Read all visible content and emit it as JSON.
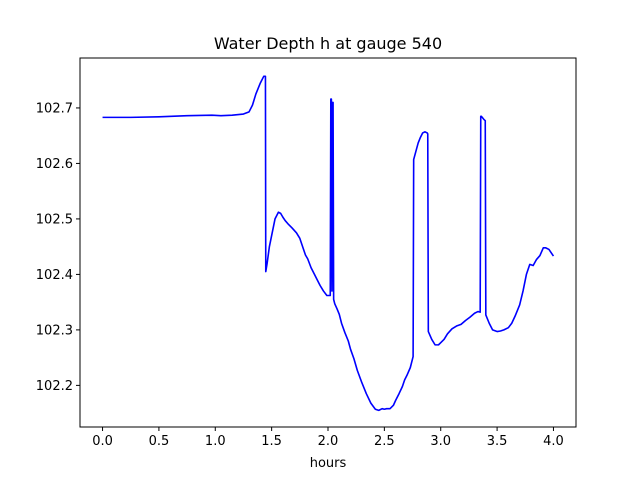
{
  "chart_data": {
    "type": "line",
    "title": "Water Depth h at gauge 540",
    "xlabel": "hours",
    "ylabel": "",
    "xlim": [
      -0.2,
      4.2
    ],
    "ylim": [
      102.125,
      102.79
    ],
    "xticks": [
      0.0,
      0.5,
      1.0,
      1.5,
      2.0,
      2.5,
      3.0,
      3.5,
      4.0
    ],
    "xtick_labels": [
      "0.0",
      "0.5",
      "1.0",
      "1.5",
      "2.0",
      "2.5",
      "3.0",
      "3.5",
      "4.0"
    ],
    "yticks": [
      102.2,
      102.3,
      102.4,
      102.5,
      102.6,
      102.7
    ],
    "ytick_labels": [
      "102.2",
      "102.3",
      "102.4",
      "102.5",
      "102.6",
      "102.7"
    ],
    "grid": false,
    "line_color": "#0000ff",
    "series": [
      {
        "x": [
          0.0,
          0.25,
          0.5,
          0.75,
          0.97,
          1.05,
          1.15,
          1.25,
          1.3,
          1.33,
          1.36,
          1.4,
          1.43,
          1.445,
          1.448,
          1.46,
          1.48,
          1.5,
          1.53,
          1.56,
          1.58,
          1.6,
          1.62,
          1.65,
          1.68,
          1.72,
          1.75,
          1.78,
          1.8,
          1.82,
          1.85,
          1.88,
          1.9,
          1.93,
          1.96,
          1.99,
          2.02,
          2.025,
          2.03,
          2.035,
          2.04,
          2.045,
          2.05,
          2.06,
          2.08,
          2.1,
          2.12,
          2.15,
          2.18,
          2.2,
          2.23,
          2.26,
          2.3,
          2.34,
          2.38,
          2.42,
          2.45,
          2.48,
          2.5,
          2.52,
          2.55,
          2.58,
          2.6,
          2.63,
          2.66,
          2.68,
          2.7,
          2.73,
          2.755,
          2.76,
          2.78,
          2.8,
          2.82,
          2.84,
          2.86,
          2.88,
          2.885,
          2.89,
          2.92,
          2.95,
          2.98,
          3.0,
          3.03,
          3.06,
          3.1,
          3.14,
          3.18,
          3.22,
          3.26,
          3.3,
          3.33,
          3.35,
          3.355,
          3.36,
          3.38,
          3.39,
          3.395,
          3.4,
          3.43,
          3.46,
          3.5,
          3.53,
          3.56,
          3.6,
          3.63,
          3.66,
          3.7,
          3.73,
          3.76,
          3.79,
          3.82,
          3.85,
          3.88,
          3.91,
          3.93,
          3.96,
          4.0
        ],
        "y": [
          102.683,
          102.683,
          102.684,
          102.686,
          102.687,
          102.686,
          102.687,
          102.689,
          102.693,
          102.705,
          102.725,
          102.745,
          102.757,
          102.757,
          102.405,
          102.42,
          102.45,
          102.47,
          102.5,
          102.512,
          102.51,
          102.503,
          102.497,
          102.49,
          102.484,
          102.475,
          102.465,
          102.447,
          102.435,
          102.428,
          102.412,
          102.4,
          102.392,
          102.38,
          102.37,
          102.362,
          102.362,
          102.716,
          102.716,
          102.37,
          102.71,
          102.71,
          102.355,
          102.347,
          102.338,
          102.328,
          102.312,
          102.295,
          102.28,
          102.265,
          102.248,
          102.227,
          102.205,
          102.185,
          102.168,
          102.157,
          102.155,
          102.158,
          102.157,
          102.158,
          102.158,
          102.164,
          102.173,
          102.185,
          102.198,
          102.21,
          102.218,
          102.232,
          102.252,
          102.607,
          102.622,
          102.637,
          102.647,
          102.655,
          102.657,
          102.655,
          102.653,
          102.297,
          102.283,
          102.273,
          102.273,
          102.277,
          102.283,
          102.293,
          102.302,
          102.307,
          102.31,
          102.317,
          102.323,
          102.33,
          102.333,
          102.332,
          102.685,
          102.685,
          102.68,
          102.678,
          102.677,
          102.327,
          102.312,
          102.3,
          102.297,
          102.298,
          102.3,
          102.304,
          102.312,
          102.325,
          102.345,
          102.37,
          102.4,
          102.418,
          102.416,
          102.427,
          102.434,
          102.448,
          102.448,
          102.445,
          102.433
        ]
      }
    ]
  }
}
